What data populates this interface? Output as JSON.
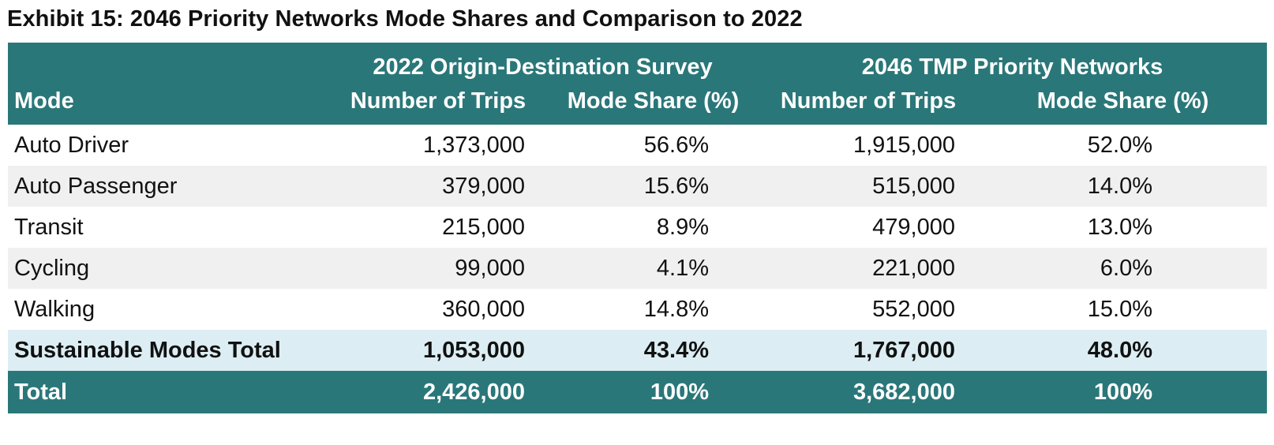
{
  "title": "Exhibit 15: 2046 Priority Networks Mode Shares and Comparison to 2022",
  "table": {
    "group_headers": [
      "2022 Origin-Destination Survey",
      "2046 TMP Priority Networks"
    ],
    "column_headers": [
      "Mode",
      "Number of Trips",
      "Mode Share (%)",
      "Number of Trips",
      "Mode Share (%)"
    ],
    "rows": [
      {
        "mode": "Auto Driver",
        "trips_2022": "1,373,000",
        "share_2022": "56.6%",
        "trips_2046": "1,915,000",
        "share_2046": "52.0%"
      },
      {
        "mode": "Auto Passenger",
        "trips_2022": "379,000",
        "share_2022": "15.6%",
        "trips_2046": "515,000",
        "share_2046": "14.0%"
      },
      {
        "mode": "Transit",
        "trips_2022": "215,000",
        "share_2022": "8.9%",
        "trips_2046": "479,000",
        "share_2046": "13.0%"
      },
      {
        "mode": "Cycling",
        "trips_2022": "99,000",
        "share_2022": "4.1%",
        "trips_2046": "221,000",
        "share_2046": "6.0%"
      },
      {
        "mode": "Walking",
        "trips_2022": "360,000",
        "share_2022": "14.8%",
        "trips_2046": "552,000",
        "share_2046": "15.0%"
      }
    ],
    "sustainable_total": {
      "mode": "Sustainable Modes Total",
      "trips_2022": "1,053,000",
      "share_2022": "43.4%",
      "trips_2046": "1,767,000",
      "share_2046": "48.0%"
    },
    "total": {
      "mode": "Total",
      "trips_2022": "2,426,000",
      "share_2022": "100%",
      "trips_2046": "3,682,000",
      "share_2046": "100%"
    }
  },
  "colors": {
    "header_teal": "#2a7779",
    "row_stripe_grey": "#f0f0f0",
    "sustainable_row_blue": "#dceef3"
  }
}
